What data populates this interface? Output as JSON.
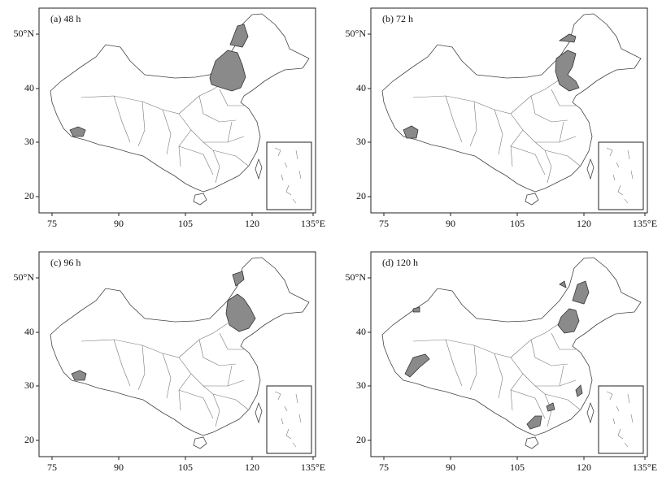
{
  "panels": [
    {
      "label": "(a) 48 h",
      "xticks": [
        "75",
        "90",
        "105",
        "120",
        "135°E"
      ],
      "yticks": [
        "50°N",
        "40",
        "30",
        "20"
      ]
    },
    {
      "label": "(b) 72 h",
      "xticks": [
        "75",
        "90",
        "105",
        "120",
        "135°E"
      ],
      "yticks": [
        "50°N",
        "40",
        "30",
        "20"
      ]
    },
    {
      "label": "(c) 96 h",
      "xticks": [
        "75",
        "90",
        "105",
        "120",
        "135°E"
      ],
      "yticks": [
        "50°N",
        "40",
        "30",
        "20"
      ]
    },
    {
      "label": "(d) 120 h",
      "xticks": [
        "75",
        "90",
        "105",
        "120",
        "135°E"
      ],
      "yticks": [
        "50°N",
        "40",
        "30",
        "20"
      ]
    }
  ]
}
